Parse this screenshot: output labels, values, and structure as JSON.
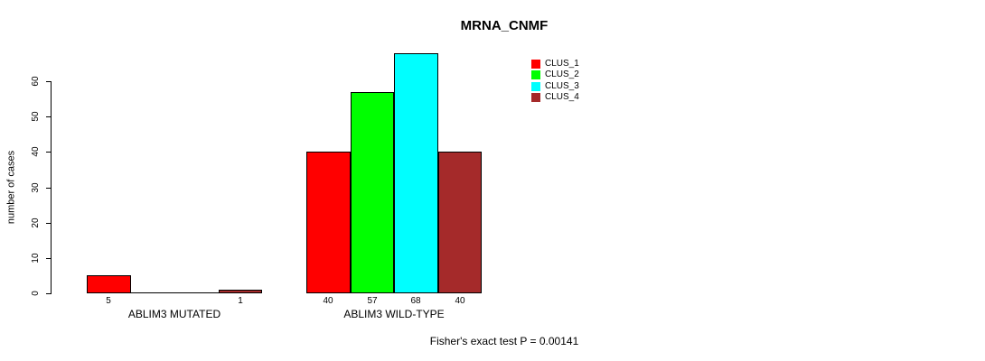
{
  "chart_data": {
    "type": "bar",
    "title": "MRNA_CNMF",
    "xlabel": "",
    "ylabel": "number of cases",
    "ylim": [
      0,
      68
    ],
    "yticks": [
      0,
      10,
      20,
      30,
      40,
      50,
      60
    ],
    "grid": false,
    "legend_position": "top-right-outside",
    "categories": [
      "ABLIM3 MUTATED",
      "ABLIM3 WILD-TYPE"
    ],
    "series": [
      {
        "name": "CLUS_1",
        "color": "#ff0000",
        "values": [
          5,
          40
        ]
      },
      {
        "name": "CLUS_2",
        "color": "#00ff00",
        "values": [
          0,
          57
        ]
      },
      {
        "name": "CLUS_3",
        "color": "#00ffff",
        "values": [
          0,
          68
        ]
      },
      {
        "name": "CLUS_4",
        "color": "#a52a2a",
        "values": [
          1,
          40
        ]
      }
    ],
    "bar_value_labels": [
      [
        "5",
        "",
        "",
        "1"
      ],
      [
        "40",
        "57",
        "68",
        "40"
      ]
    ],
    "annotation": "Fisher's exact test P = 0.00141"
  }
}
